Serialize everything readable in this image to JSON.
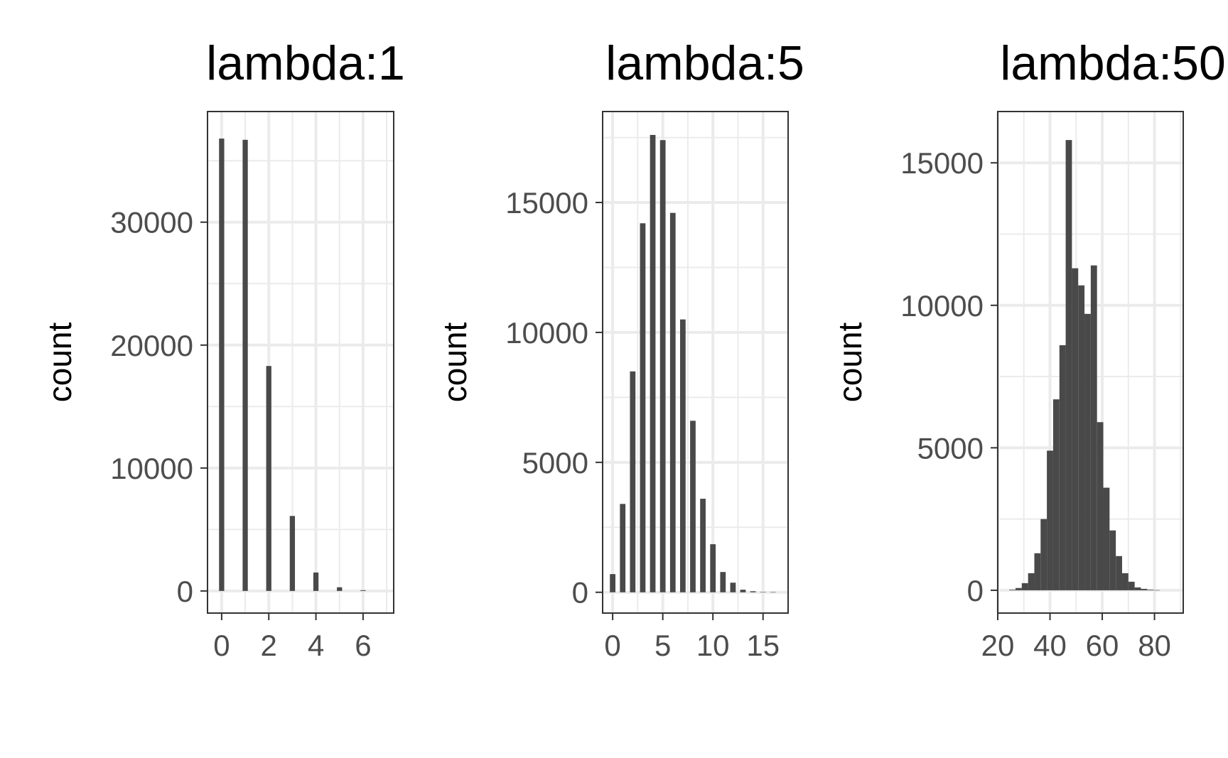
{
  "chart_data": [
    {
      "type": "bar",
      "title": "lambda:1",
      "xlabel": "",
      "ylabel": "count",
      "grid": true,
      "xlim": [
        -0.6,
        7.3
      ],
      "ylim": [
        -1800,
        39000
      ],
      "xticks": [
        0,
        2,
        4,
        6
      ],
      "yticks": [
        0,
        10000,
        20000,
        30000
      ],
      "bin_width": 0.22,
      "x": [
        0,
        1,
        2,
        3,
        4,
        5,
        6
      ],
      "values": [
        36800,
        36700,
        18300,
        6100,
        1500,
        300,
        60
      ]
    },
    {
      "type": "bar",
      "title": "lambda:5",
      "xlabel": "",
      "ylabel": "count",
      "grid": true,
      "xlim": [
        -1.0,
        17.5
      ],
      "ylim": [
        -800,
        18500
      ],
      "xticks": [
        0,
        5,
        10,
        15
      ],
      "yticks": [
        0,
        5000,
        10000,
        15000
      ],
      "bin_width": 0.55,
      "x": [
        0,
        1,
        2,
        3,
        4,
        5,
        6,
        7,
        8,
        9,
        10,
        11,
        12,
        13,
        14,
        15,
        16
      ],
      "values": [
        700,
        3400,
        8500,
        14200,
        17600,
        17400,
        14600,
        10500,
        6600,
        3600,
        1850,
        780,
        370,
        100,
        40,
        15,
        5
      ]
    },
    {
      "type": "bar",
      "title": "lambda:50",
      "xlabel": "",
      "ylabel": "count",
      "grid": true,
      "xlim": [
        20,
        91
      ],
      "ylim": [
        -800,
        16800
      ],
      "xticks": [
        20,
        40,
        60,
        80
      ],
      "yticks": [
        0,
        5000,
        10000,
        15000
      ],
      "bin_width": 2.4,
      "x": [
        25.6,
        28,
        30.4,
        32.8,
        35.2,
        37.6,
        40,
        42.4,
        44.8,
        47.2,
        49.6,
        52,
        54.4,
        56.8,
        59.2,
        61.6,
        64,
        66.4,
        68.8,
        71.2,
        73.6,
        76,
        78.4,
        80.8
      ],
      "values": [
        20,
        80,
        250,
        600,
        1300,
        2500,
        4900,
        6700,
        8600,
        15800,
        11300,
        10700,
        9700,
        11400,
        5900,
        3600,
        2100,
        1200,
        600,
        300,
        100,
        50,
        20,
        5
      ]
    }
  ]
}
